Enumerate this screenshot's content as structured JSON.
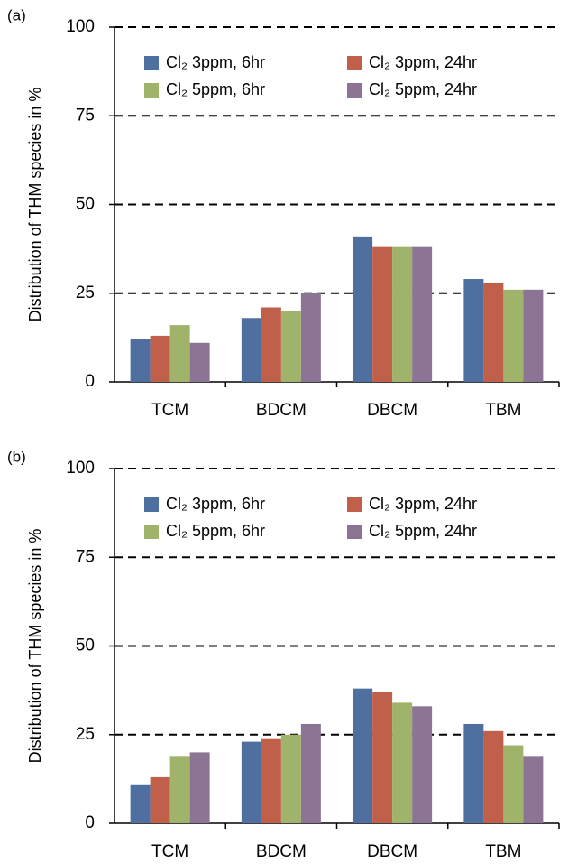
{
  "chart_data": [
    {
      "type": "bar",
      "panel_label": "(a)",
      "y_label": "Distribution of THM species in %",
      "categories": [
        "TCM",
        "BDCM",
        "DBCM",
        "TBM"
      ],
      "series": [
        {
          "name": "Cl₂ 3ppm, 6hr",
          "color": "#4f6fa0",
          "values": [
            12,
            18,
            41,
            29
          ]
        },
        {
          "name": "Cl₂ 3ppm, 24hr",
          "color": "#c0604a",
          "values": [
            13,
            21,
            38,
            28
          ]
        },
        {
          "name": "Cl₂ 5ppm, 6hr",
          "color": "#9fb36a",
          "values": [
            16,
            20,
            38,
            26
          ]
        },
        {
          "name": "Cl₂ 5ppm, 24hr",
          "color": "#8c7494",
          "values": [
            11,
            25,
            38,
            26
          ]
        }
      ],
      "ylim": [
        0,
        100
      ],
      "yticks": [
        0,
        25,
        50,
        75,
        100
      ],
      "grid": true
    },
    {
      "type": "bar",
      "panel_label": "(b)",
      "y_label": "Distribution of THM species in %",
      "categories": [
        "TCM",
        "BDCM",
        "DBCM",
        "TBM"
      ],
      "series": [
        {
          "name": "Cl₂ 3ppm, 6hr",
          "color": "#4f6fa0",
          "values": [
            11,
            23,
            38,
            28
          ]
        },
        {
          "name": "Cl₂ 3ppm, 24hr",
          "color": "#c0604a",
          "values": [
            13,
            24,
            37,
            26
          ]
        },
        {
          "name": "Cl₂ 5ppm, 6hr",
          "color": "#9fb36a",
          "values": [
            19,
            25,
            34,
            22
          ]
        },
        {
          "name": "Cl₂ 5ppm, 24hr",
          "color": "#8c7494",
          "values": [
            20,
            28,
            33,
            19
          ]
        }
      ],
      "ylim": [
        0,
        100
      ],
      "yticks": [
        0,
        25,
        50,
        75,
        100
      ],
      "grid": true
    }
  ]
}
